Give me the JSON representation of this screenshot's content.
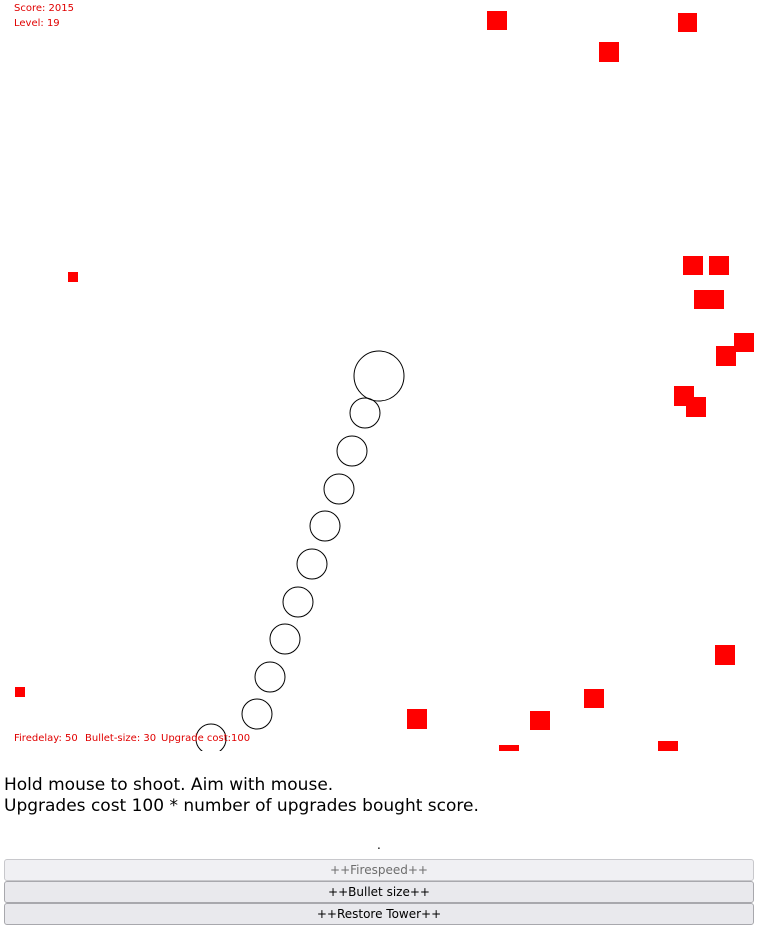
{
  "hud": {
    "score_text": "Score: 2015",
    "level_text": "Level: 19",
    "firedelay_text": "Firedelay: 50",
    "bulletsize_text": "Bullet-size: 30",
    "upgradecost_text": "Upgrade cost:100"
  },
  "instructions": {
    "line1": "Hold mouse to shoot. Aim with mouse.",
    "line2": "Upgrades cost 100 * number of upgrades bought score."
  },
  "status_text": ".",
  "buttons": {
    "firespeed": "++Firespeed++",
    "bullet_size": "++Bullet size++",
    "restore_tower": "++Restore Tower++"
  },
  "colors": {
    "enemy": "#ff0000",
    "hud_text": "#e00000",
    "bullet_stroke": "#000000"
  }
}
